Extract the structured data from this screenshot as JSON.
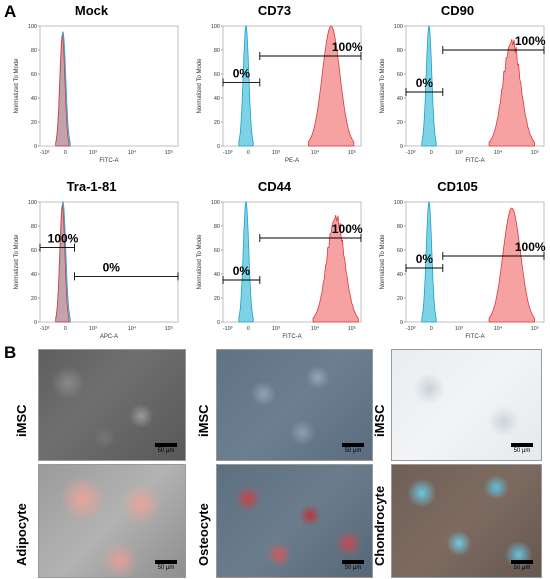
{
  "panel_a": {
    "letter": "A",
    "y_axis_label": "Normalized To Mode",
    "y_ticks": [
      "0",
      "20",
      "40",
      "60",
      "80",
      "100"
    ],
    "x_ticks": [
      "-10³",
      "0",
      "10³",
      "10⁴",
      "10⁵"
    ],
    "colors": {
      "control": "#5cc8e0",
      "stained": "#f47a7a",
      "stained_edge": "#d9383c",
      "control_edge": "#1e9fc8"
    }
  },
  "chart_data": [
    {
      "type": "area",
      "title": "Mock",
      "xlabel": "FITC-A",
      "ylabel": "Normalized To Mode",
      "ylim": [
        0,
        100
      ],
      "series": [
        {
          "peak_log_x": 0.0,
          "peak": 95,
          "kind": "overlap"
        }
      ],
      "gates": []
    },
    {
      "type": "area",
      "title": "CD73",
      "xlabel": "PE-A",
      "ylabel": "Normalized To Mode",
      "ylim": [
        0,
        100
      ],
      "series": [
        {
          "peak_log_x": 0.0,
          "peak": 100,
          "kind": "control"
        },
        {
          "peak_log_x": 3.7,
          "peak": 100,
          "kind": "stained"
        }
      ],
      "gates": [
        {
          "label": "0%",
          "y": 53
        },
        {
          "label": "100%",
          "y": 75
        }
      ]
    },
    {
      "type": "area",
      "title": "CD90",
      "xlabel": "FITC-A",
      "ylabel": "Normalized To Mode",
      "ylim": [
        0,
        100
      ],
      "series": [
        {
          "peak_log_x": 0.0,
          "peak": 100,
          "kind": "control"
        },
        {
          "peak_log_x": 3.6,
          "peak": 95,
          "kind": "stained"
        }
      ],
      "gates": [
        {
          "label": "0%",
          "y": 45
        },
        {
          "label": "100%",
          "y": 80
        }
      ]
    },
    {
      "type": "area",
      "title": "Tra-1-81",
      "xlabel": "APC-A",
      "ylabel": "Normalized To Mode",
      "ylim": [
        0,
        100
      ],
      "series": [
        {
          "peak_log_x": 0.0,
          "peak": 100,
          "kind": "overlap"
        }
      ],
      "gates": [
        {
          "label": "100%",
          "y": 62
        },
        {
          "label": "0%",
          "y": 38
        }
      ]
    },
    {
      "type": "area",
      "title": "CD44",
      "xlabel": "FITC-A",
      "ylabel": "Normalized To Mode",
      "ylim": [
        0,
        100
      ],
      "series": [
        {
          "peak_log_x": 0.0,
          "peak": 100,
          "kind": "control"
        },
        {
          "peak_log_x": 3.9,
          "peak": 95,
          "kind": "stained"
        }
      ],
      "gates": [
        {
          "label": "0%",
          "y": 35
        },
        {
          "label": "100%",
          "y": 70
        }
      ]
    },
    {
      "type": "area",
      "title": "CD105",
      "xlabel": "FITC-A",
      "ylabel": "Normalized To Mode",
      "ylim": [
        0,
        100
      ],
      "series": [
        {
          "peak_log_x": 0.0,
          "peak": 100,
          "kind": "control"
        },
        {
          "peak_log_x": 3.6,
          "peak": 95,
          "kind": "stained"
        }
      ],
      "gates": [
        {
          "label": "0%",
          "y": 45
        },
        {
          "label": "100%",
          "y": 55
        }
      ]
    }
  ],
  "panel_b": {
    "letter": "B",
    "rows": [
      {
        "labels": [
          "iMSC",
          "iMSC",
          "iMSC"
        ]
      },
      {
        "labels": [
          "Adipocyte",
          "Osteocyte",
          "Chondrocyte"
        ]
      }
    ],
    "scale_label": "50 μm"
  }
}
